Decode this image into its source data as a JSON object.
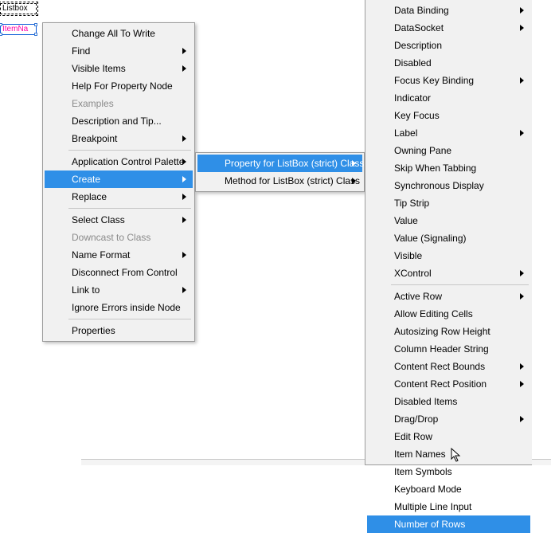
{
  "nodes": {
    "listbox_label": "Listbox",
    "item_label": "ItemNa"
  },
  "menu1": [
    {
      "label": "Change All To Write",
      "arrow": false
    },
    {
      "label": "Find",
      "arrow": true
    },
    {
      "label": "Visible Items",
      "arrow": true
    },
    {
      "label": "Help For Property Node",
      "arrow": false
    },
    {
      "label": "Examples",
      "arrow": false,
      "disabled": true
    },
    {
      "label": "Description and Tip...",
      "arrow": false
    },
    {
      "label": "Breakpoint",
      "arrow": true
    },
    {
      "sep": true
    },
    {
      "label": "Application Control Palette",
      "arrow": true
    },
    {
      "label": "Create",
      "arrow": true,
      "hl": true
    },
    {
      "label": "Replace",
      "arrow": true
    },
    {
      "sep": true
    },
    {
      "label": "Select Class",
      "arrow": true
    },
    {
      "label": "Downcast to Class",
      "arrow": false,
      "disabled": true
    },
    {
      "label": "Name Format",
      "arrow": true
    },
    {
      "label": "Disconnect From Control",
      "arrow": false
    },
    {
      "label": "Link to",
      "arrow": true
    },
    {
      "label": "Ignore Errors inside Node",
      "arrow": false
    },
    {
      "sep": true
    },
    {
      "label": "Properties",
      "arrow": false
    }
  ],
  "menu2": [
    {
      "label": "Property for ListBox (strict) Class",
      "arrow": true,
      "hl": true
    },
    {
      "label": "Method for ListBox (strict) Class",
      "arrow": true
    }
  ],
  "menu3": [
    {
      "label": "Data Binding",
      "arrow": true
    },
    {
      "label": "DataSocket",
      "arrow": true
    },
    {
      "label": "Description",
      "arrow": false
    },
    {
      "label": "Disabled",
      "arrow": false
    },
    {
      "label": "Focus Key Binding",
      "arrow": true
    },
    {
      "label": "Indicator",
      "arrow": false
    },
    {
      "label": "Key Focus",
      "arrow": false
    },
    {
      "label": "Label",
      "arrow": true
    },
    {
      "label": "Owning Pane",
      "arrow": false
    },
    {
      "label": "Skip When Tabbing",
      "arrow": false
    },
    {
      "label": "Synchronous Display",
      "arrow": false
    },
    {
      "label": "Tip Strip",
      "arrow": false
    },
    {
      "label": "Value",
      "arrow": false
    },
    {
      "label": "Value (Signaling)",
      "arrow": false
    },
    {
      "label": "Visible",
      "arrow": false
    },
    {
      "label": "XControl",
      "arrow": true
    },
    {
      "sep": true
    },
    {
      "label": "Active Row",
      "arrow": true
    },
    {
      "label": "Allow Editing Cells",
      "arrow": false
    },
    {
      "label": "Autosizing Row Height",
      "arrow": false
    },
    {
      "label": "Column Header String",
      "arrow": false
    },
    {
      "label": "Content Rect Bounds",
      "arrow": true
    },
    {
      "label": "Content Rect Position",
      "arrow": true
    },
    {
      "label": "Disabled Items",
      "arrow": false
    },
    {
      "label": "Drag/Drop",
      "arrow": true
    },
    {
      "label": "Edit Row",
      "arrow": false
    },
    {
      "label": "Item Names",
      "arrow": false
    },
    {
      "label": "Item Symbols",
      "arrow": false
    },
    {
      "label": "Keyboard Mode",
      "arrow": false
    },
    {
      "label": "Multiple Line Input",
      "arrow": false
    },
    {
      "label": "Number of Rows",
      "arrow": false,
      "hl": true
    }
  ]
}
